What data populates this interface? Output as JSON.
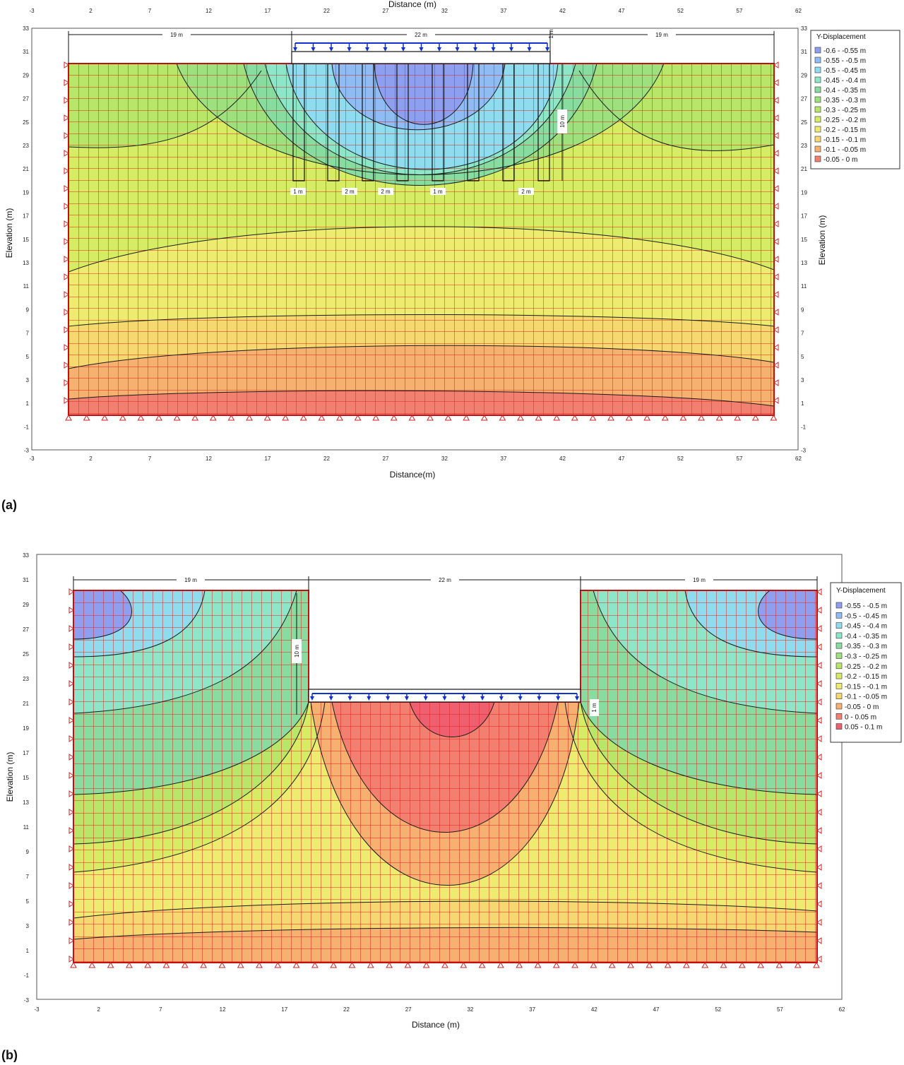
{
  "panels": [
    {
      "id": "a",
      "label": "(a)",
      "xlabel": "Distance (m)",
      "xlabel_bottom": "Distance(m)",
      "ylabel": "Elevation (m)",
      "xticks": [
        "-3",
        "2",
        "7",
        "12",
        "17",
        "22",
        "27",
        "32",
        "37",
        "42",
        "47",
        "52",
        "57",
        "62"
      ],
      "yticks": [
        "33",
        "31",
        "29",
        "27",
        "25",
        "23",
        "21",
        "19",
        "17",
        "15",
        "13",
        "11",
        "9",
        "7",
        "5",
        "3",
        "1",
        "-1",
        "-3"
      ],
      "dims": {
        "left": "19 m",
        "center": "22 m",
        "right": "19 m",
        "depth": "10 m",
        "slab": "1 m"
      },
      "spacing_labels": [
        "1 m",
        "2 m",
        "2 m",
        "1 m",
        "2 m"
      ],
      "legend": {
        "title": "Y-Displacement",
        "items": [
          {
            "label": "-0.6 - -0.55 m",
            "color": "#8f9ff0"
          },
          {
            "label": "-0.55 - -0.5 m",
            "color": "#8fbcf2"
          },
          {
            "label": "-0.5 - -0.45 m",
            "color": "#8fdcef"
          },
          {
            "label": "-0.45 - -0.4 m",
            "color": "#8ee6c9"
          },
          {
            "label": "-0.4 - -0.35 m",
            "color": "#88dca0"
          },
          {
            "label": "-0.35 - -0.3 m",
            "color": "#9ee07e"
          },
          {
            "label": "-0.3 - -0.25 m",
            "color": "#b8e668"
          },
          {
            "label": "-0.25 - -0.2 m",
            "color": "#d6ec64"
          },
          {
            "label": "-0.2 - -0.15 m",
            "color": "#eeec70"
          },
          {
            "label": "-0.15 - -0.1 m",
            "color": "#f5d870"
          },
          {
            "label": "-0.1 - -0.05 m",
            "color": "#f6b070"
          },
          {
            "label": "-0.05 - 0 m",
            "color": "#f28070"
          }
        ]
      }
    },
    {
      "id": "b",
      "label": "(b)",
      "xlabel": "Distance (m)",
      "ylabel": "Elevation (m)",
      "xticks": [
        "-3",
        "2",
        "7",
        "12",
        "17",
        "22",
        "27",
        "32",
        "37",
        "42",
        "47",
        "52",
        "57",
        "62"
      ],
      "yticks": [
        "33",
        "31",
        "29",
        "27",
        "25",
        "23",
        "21",
        "19",
        "17",
        "15",
        "13",
        "11",
        "9",
        "7",
        "5",
        "3",
        "1",
        "-1",
        "-3"
      ],
      "dims": {
        "left": "19 m",
        "center": "22 m",
        "right": "19 m",
        "depth": "10 m",
        "slab": "1 m"
      },
      "legend": {
        "title": "Y-Displacement",
        "items": [
          {
            "label": "-0.55 - -0.5 m",
            "color": "#8f9ff0"
          },
          {
            "label": "-0.5 - -0.45 m",
            "color": "#8fbcf2"
          },
          {
            "label": "-0.45 - -0.4 m",
            "color": "#8fdcef"
          },
          {
            "label": "-0.4 - -0.35 m",
            "color": "#8ee6c9"
          },
          {
            "label": "-0.35 - -0.3 m",
            "color": "#88dca0"
          },
          {
            "label": "-0.3 - -0.25 m",
            "color": "#9ee07e"
          },
          {
            "label": "-0.25 - -0.2 m",
            "color": "#b8e668"
          },
          {
            "label": "-0.2 - -0.15 m",
            "color": "#d6ec64"
          },
          {
            "label": "-0.15 - -0.1 m",
            "color": "#eeec70"
          },
          {
            "label": "-0.1 - -0.05 m",
            "color": "#f5d870"
          },
          {
            "label": "-0.05 - 0 m",
            "color": "#f6b070"
          },
          {
            "label": "0 - 0.05 m",
            "color": "#f28070"
          },
          {
            "label": "0.05 - 0.1 m",
            "color": "#ee6070"
          }
        ]
      }
    }
  ]
}
